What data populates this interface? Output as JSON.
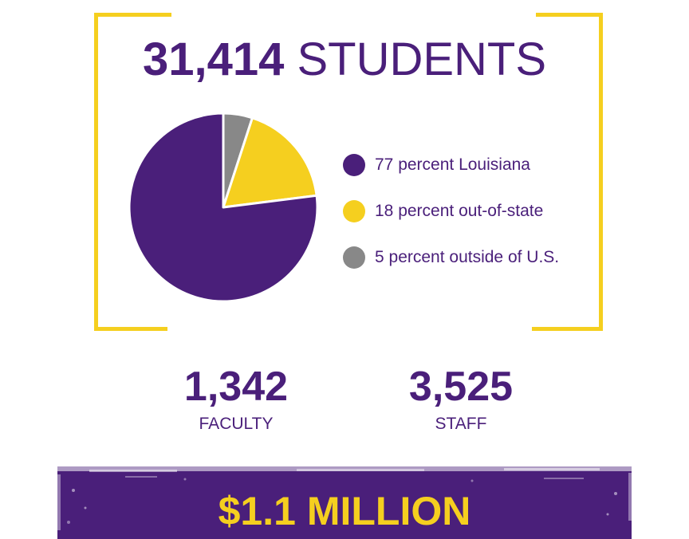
{
  "header": {
    "number": "31,414",
    "word": "STUDENTS"
  },
  "chart_data": {
    "type": "pie",
    "categories": [
      "77 percent Louisiana",
      "18 percent out-of-state",
      "5 percent outside of U.S."
    ],
    "values": [
      77,
      18,
      5
    ],
    "colors": [
      "#4a1f7a",
      "#f5cf1f",
      "#888888"
    ],
    "legend_position": "right"
  },
  "stats": [
    {
      "value": "1,342",
      "label": "FACULTY"
    },
    {
      "value": "3,525",
      "label": "STAFF"
    }
  ],
  "banner": {
    "text": "$1.1 MILLION"
  },
  "colors": {
    "purple": "#4a1f7a",
    "gold": "#f5cf1f",
    "gray": "#888888"
  }
}
